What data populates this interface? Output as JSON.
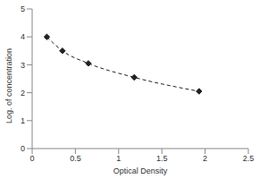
{
  "chart_data": {
    "type": "line",
    "x_label": "Optical Density",
    "y_label": "Log. of concentration",
    "x": [
      0.17,
      0.35,
      0.65,
      1.18,
      1.93
    ],
    "values": [
      4.0,
      3.5,
      3.05,
      2.55,
      2.05
    ],
    "color": "#222222",
    "marker": "diamond",
    "line_style": "dashed",
    "xlim": [
      0,
      2.5
    ],
    "xticks": [
      0,
      0.5,
      1,
      1.5,
      2,
      2.5
    ],
    "ylim": [
      0,
      5
    ],
    "yticks": [
      0,
      1,
      2,
      3,
      4,
      5
    ],
    "grid": false
  }
}
